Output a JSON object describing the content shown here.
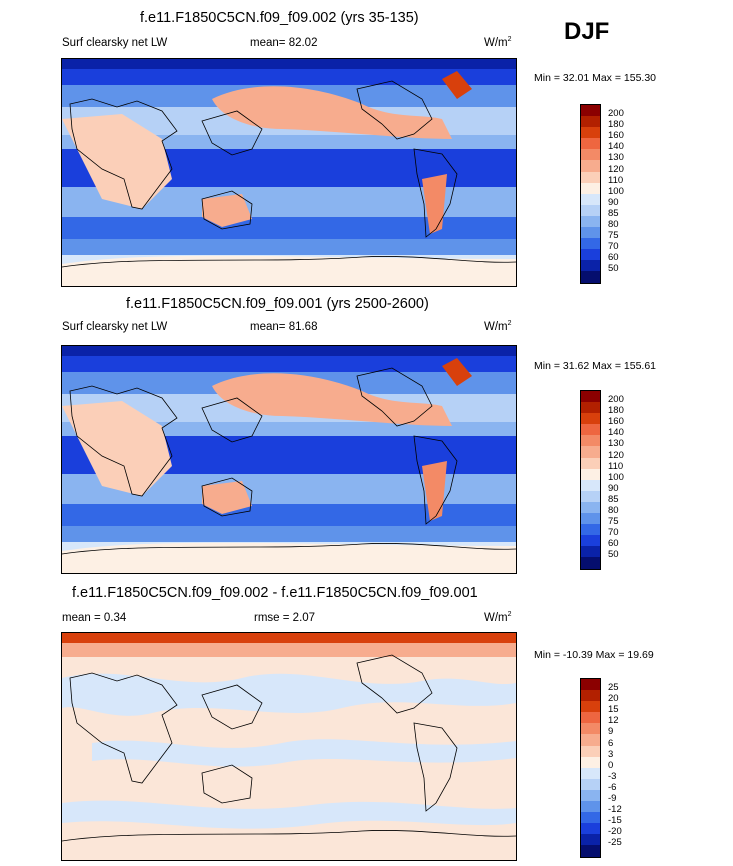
{
  "season": "DJF",
  "panels": [
    {
      "title": "f.e11.F1850C5CN.f09_f09.002 (yrs 35-135)",
      "variable": "Surf clearsky net LW",
      "mean_label": "mean=",
      "mean_value": "82.02",
      "units_base": "W/m",
      "units_exp": "2",
      "min_label": "Min =",
      "min_value": "32.01",
      "max_label": "Max =",
      "max_value": "155.30",
      "colorbar_levels": [
        "200",
        "180",
        "160",
        "140",
        "130",
        "120",
        "110",
        "100",
        "90",
        "85",
        "80",
        "75",
        "70",
        "60",
        "50"
      ],
      "colorbar_colors": [
        "#8b0000",
        "#b22000",
        "#d8400c",
        "#ee6640",
        "#f38a66",
        "#f7ac8e",
        "#fbcfb8",
        "#fdf0e4",
        "#d7e7fa",
        "#b6d1f6",
        "#8ab4f0",
        "#5f93ea",
        "#3368e6",
        "#1a3fdc",
        "#0a22a8",
        "#050e6e"
      ]
    },
    {
      "title": "f.e11.F1850C5CN.f09_f09.001 (yrs 2500-2600)",
      "variable": "Surf clearsky net LW",
      "mean_label": "mean=",
      "mean_value": "81.68",
      "units_base": "W/m",
      "units_exp": "2",
      "min_label": "Min =",
      "min_value": "31.62",
      "max_label": "Max =",
      "max_value": "155.61",
      "colorbar_levels": [
        "200",
        "180",
        "160",
        "140",
        "130",
        "120",
        "110",
        "100",
        "90",
        "85",
        "80",
        "75",
        "70",
        "60",
        "50"
      ],
      "colorbar_colors": [
        "#8b0000",
        "#b22000",
        "#d8400c",
        "#ee6640",
        "#f38a66",
        "#f7ac8e",
        "#fbcfb8",
        "#fdf0e4",
        "#d7e7fa",
        "#b6d1f6",
        "#8ab4f0",
        "#5f93ea",
        "#3368e6",
        "#1a3fdc",
        "#0a22a8",
        "#050e6e"
      ]
    },
    {
      "title": "f.e11.F1850C5CN.f09_f09.002 - f.e11.F1850C5CN.f09_f09.001",
      "mean_label": "mean =",
      "mean_value": "0.34",
      "rmse_label": "rmse =",
      "rmse_value": "2.07",
      "units_base": "W/m",
      "units_exp": "2",
      "min_label": "Min =",
      "min_value": "-10.39",
      "max_label": "Max =",
      "max_value": "19.69",
      "colorbar_levels": [
        "25",
        "20",
        "15",
        "12",
        "9",
        "6",
        "3",
        "0",
        "-3",
        "-6",
        "-9",
        "-12",
        "-15",
        "-20",
        "-25"
      ],
      "colorbar_colors": [
        "#8b0000",
        "#b22000",
        "#d8400c",
        "#ee6640",
        "#f38a66",
        "#f7ac8e",
        "#fbcfb8",
        "#fdf0e4",
        "#d7e7fa",
        "#b6d1f6",
        "#8ab4f0",
        "#5f93ea",
        "#3368e6",
        "#1a3fdc",
        "#0a22a8",
        "#050e6e"
      ]
    }
  ]
}
